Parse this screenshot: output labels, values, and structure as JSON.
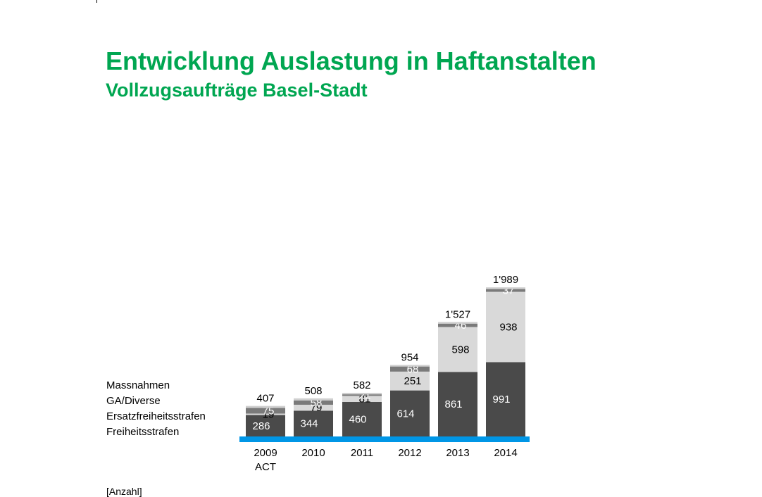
{
  "header": {
    "title": "Entwicklung Auslastung in Haftanstalten",
    "subtitle": "Vollzugsaufträge Basel-Stadt"
  },
  "unit_label": "[Anzahl]",
  "colors": {
    "title": "#00a651",
    "Freiheitsstrafen": "#4a4a4a",
    "Ersatzfreiheitsstrafen": "#d9d9d9",
    "GA/Diverse": "#7a7a7a",
    "Massnahmen": "#cfcfcf",
    "baseline": "#0096e6"
  },
  "chart_data": {
    "type": "bar",
    "stacked": true,
    "categories": [
      "2009\nACT",
      "2010",
      "2011",
      "2012",
      "2013",
      "2014"
    ],
    "series": [
      {
        "name": "Freiheitsstrafen",
        "values": [
          286,
          344,
          460,
          614,
          861,
          991
        ]
      },
      {
        "name": "Ersatzfreiheitsstrafen",
        "values": [
          19,
          79,
          81,
          251,
          598,
          938
        ]
      },
      {
        "name": "GA/Diverse",
        "values": [
          75,
          58,
          21,
          68,
          46,
          37
        ]
      },
      {
        "name": "Massnahmen",
        "values": [
          27,
          27,
          20,
          21,
          22,
          23
        ]
      }
    ],
    "totals": [
      "407",
      "508",
      "582",
      "954",
      "1'527",
      "1'989"
    ],
    "segment_labels": [
      [
        "286",
        "19",
        "75",
        null
      ],
      [
        "344",
        "79",
        "58",
        null
      ],
      [
        "460",
        "81",
        "21",
        null
      ],
      [
        "614",
        "251",
        "68",
        null
      ],
      [
        "861",
        "598",
        "46",
        null
      ],
      [
        "991",
        "938",
        "37",
        null
      ]
    ],
    "legend": [
      "Massnahmen",
      "GA/Diverse",
      "Ersatzfreiheitsstrafen",
      "Freiheitsstrafen"
    ],
    "legend_position": "left",
    "grid": false
  }
}
